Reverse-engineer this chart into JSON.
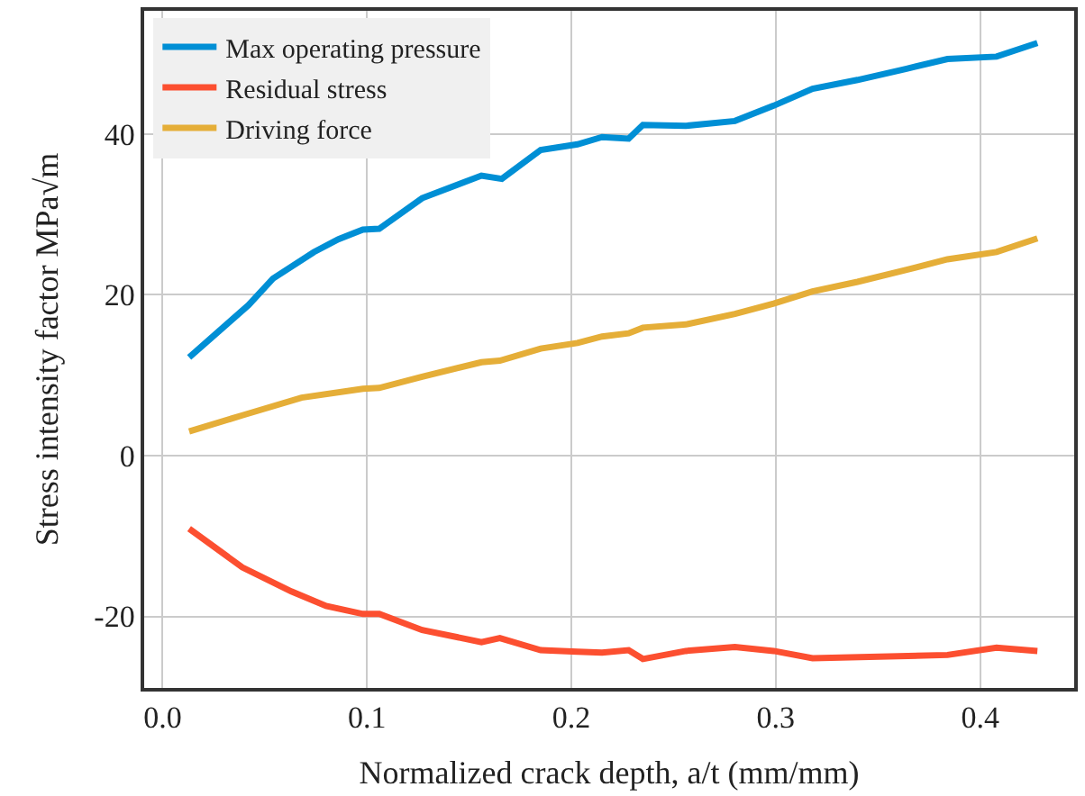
{
  "chart_data": {
    "type": "line",
    "xlabel": "Normalized crack depth, a/t (mm/mm)",
    "ylabel": "Stress intensity factor MPa√m",
    "xlim": [
      -0.009,
      0.446
    ],
    "ylim": [
      -28.9,
      55.3
    ],
    "xticks": [
      {
        "value": 0,
        "label": "0.0"
      },
      0.1,
      0.2,
      0.3,
      0.4
    ],
    "yticks": [
      -20,
      0,
      20,
      40
    ],
    "grid": true,
    "legend": "top left",
    "line_style": "solid",
    "marker": "none",
    "series": [
      {
        "name": "Max operating pressure",
        "color": "#008fd5",
        "x": [
          0.013,
          0.042,
          0.054,
          0.074,
          0.086,
          0.098,
          0.106,
          0.127,
          0.156,
          0.166,
          0.185,
          0.203,
          0.215,
          0.228,
          0.235,
          0.256,
          0.28,
          0.299,
          0.318,
          0.34,
          0.364,
          0.384,
          0.408,
          0.428
        ],
        "values": [
          12.2,
          18.7,
          22,
          25.3,
          26.9,
          28.1,
          28.2,
          32,
          34.8,
          34.4,
          38,
          38.7,
          39.6,
          39.4,
          41.1,
          41,
          41.6,
          43.5,
          45.6,
          46.7,
          48.1,
          49.3,
          49.6,
          51.3
        ]
      },
      {
        "name": "Residual stress",
        "color": "#fc4f30",
        "x": [
          0.013,
          0.039,
          0.063,
          0.08,
          0.098,
          0.106,
          0.127,
          0.156,
          0.165,
          0.185,
          0.203,
          0.215,
          0.228,
          0.235,
          0.256,
          0.28,
          0.299,
          0.318,
          0.384,
          0.408,
          0.428
        ],
        "values": [
          -9.1,
          -13.9,
          -16.9,
          -18.7,
          -19.7,
          -19.7,
          -21.7,
          -23.2,
          -22.7,
          -24.2,
          -24.4,
          -24.5,
          -24.2,
          -25.3,
          -24.3,
          -23.8,
          -24.3,
          -25.2,
          -24.8,
          -23.9,
          -24.3
        ]
      },
      {
        "name": "Driving force",
        "color": "#e5ae38",
        "x": [
          0.013,
          0.039,
          0.068,
          0.098,
          0.106,
          0.127,
          0.156,
          0.165,
          0.185,
          0.203,
          0.215,
          0.228,
          0.235,
          0.256,
          0.28,
          0.299,
          0.318,
          0.34,
          0.364,
          0.384,
          0.408,
          0.428
        ],
        "values": [
          3.0,
          5.0,
          7.2,
          8.3,
          8.4,
          9.8,
          11.6,
          11.8,
          13.3,
          14,
          14.8,
          15.2,
          15.9,
          16.3,
          17.6,
          18.9,
          20.4,
          21.6,
          23.1,
          24.4,
          25.3,
          27.0
        ]
      }
    ]
  }
}
